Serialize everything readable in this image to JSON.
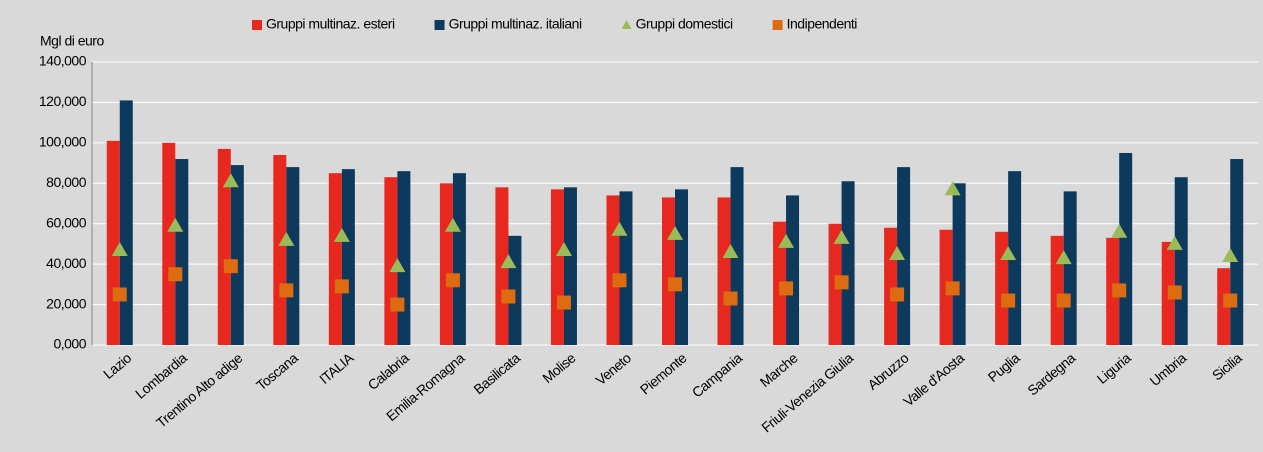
{
  "chart_data": {
    "type": "bar_marker",
    "y_axis_label": "Mgl di euro",
    "categories": [
      "Lazio",
      "Lombardia",
      "Trentino Alto adige",
      "Toscana",
      "ITALIA",
      "Calabria",
      "Emilia-Romagna",
      "Basilicata",
      "Molise",
      "Veneto",
      "Piemonte",
      "Campania",
      "Marche",
      "Friuli-Venezia Giulia",
      "Abruzzo",
      "Valle d'Aosta",
      "Puglia",
      "Sardegna",
      "Liguria",
      "Umbria",
      "Sicilia"
    ],
    "series": [
      {
        "name": "Gruppi multinaz. esteri",
        "color": "#e8281e",
        "mark": "bar",
        "values": [
          101000,
          100000,
          97000,
          94000,
          85000,
          83000,
          80000,
          78000,
          77000,
          74000,
          73000,
          73000,
          61000,
          60000,
          58000,
          57000,
          56000,
          54000,
          53000,
          51000,
          38000
        ]
      },
      {
        "name": "Gruppi multinaz. italiani",
        "color": "#0d3a5c",
        "mark": "bar",
        "values": [
          121000,
          92000,
          89000,
          88000,
          87000,
          86000,
          85000,
          54000,
          78000,
          76000,
          77000,
          88000,
          74000,
          81000,
          88000,
          80000,
          86000,
          76000,
          95000,
          83000,
          92000
        ]
      },
      {
        "name": "Gruppi domestici",
        "color": "#9bbb59",
        "mark": "triangle",
        "values": [
          47000,
          59000,
          81000,
          52000,
          54000,
          39000,
          59000,
          41000,
          47000,
          57000,
          55000,
          46000,
          51000,
          53000,
          45000,
          77000,
          45000,
          43000,
          56000,
          50000,
          44000
        ]
      },
      {
        "name": "Indipendenti",
        "color": "#dd6b10",
        "mark": "square",
        "values": [
          25000,
          35000,
          39000,
          27000,
          29000,
          20000,
          32000,
          24000,
          21000,
          32000,
          30000,
          23000,
          28000,
          31000,
          25000,
          28000,
          22000,
          22000,
          27000,
          26000,
          22000
        ]
      }
    ],
    "ylim": [
      0,
      140000
    ],
    "yticks": [
      {
        "value": 0,
        "label": "0,000"
      },
      {
        "value": 20000,
        "label": "20,000"
      },
      {
        "value": 40000,
        "label": "40,000"
      },
      {
        "value": 60000,
        "label": "60,000"
      },
      {
        "value": 80000,
        "label": "80,000"
      },
      {
        "value": 100000,
        "label": "100,000"
      },
      {
        "value": 120000,
        "label": "120,000"
      },
      {
        "value": 140000,
        "label": "140,000"
      }
    ],
    "grid": true,
    "legend": "top"
  }
}
